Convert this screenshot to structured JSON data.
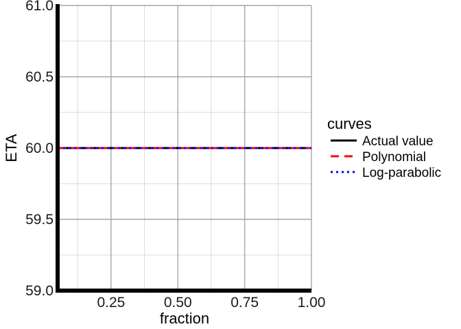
{
  "chart_data": {
    "type": "line",
    "xlabel": "fraction",
    "ylabel": "ETA",
    "xlim": [
      0.05,
      1.0
    ],
    "ylim": [
      59.0,
      61.0
    ],
    "x_ticks": [
      0.25,
      0.5,
      0.75,
      1.0
    ],
    "x_tick_labels": [
      "0.25",
      "0.50",
      "0.75",
      "1.00"
    ],
    "y_ticks": [
      59.0,
      59.5,
      60.0,
      60.5,
      61.0
    ],
    "y_tick_labels": [
      "59.0",
      "59.5",
      "60.0",
      "60.5",
      "61.0"
    ],
    "grid": true,
    "legend": {
      "title": "curves",
      "position": "right"
    },
    "series": [
      {
        "name": "Actual value",
        "x": [
          0.05,
          1.0
        ],
        "y": [
          60.0,
          60.0
        ],
        "color": "#000000",
        "dash": "solid"
      },
      {
        "name": "Polynomial",
        "x": [
          0.05,
          1.0
        ],
        "y": [
          60.0,
          60.0
        ],
        "color": "#ff0000",
        "dash": "dashed"
      },
      {
        "name": "Log-parabolic",
        "x": [
          0.05,
          1.0
        ],
        "y": [
          60.0,
          60.0
        ],
        "color": "#0000ff",
        "dash": "dotted"
      }
    ]
  }
}
